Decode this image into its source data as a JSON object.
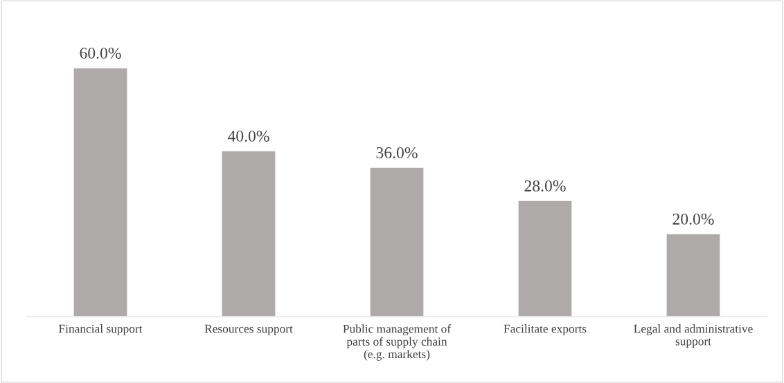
{
  "chart_data": {
    "type": "bar",
    "categories": [
      "Financial support",
      "Resources support",
      "Public management of\nparts of supply chain\n(e.g. markets)",
      "Facilitate exports",
      "Legal and administrative\nsupport"
    ],
    "values": [
      60,
      40,
      36,
      28,
      20
    ],
    "value_labels": [
      "60.0%",
      "40.0%",
      "36.0%",
      "28.0%",
      "20.0%"
    ],
    "color": "#aeaaaa",
    "grid": false,
    "legend": false
  }
}
